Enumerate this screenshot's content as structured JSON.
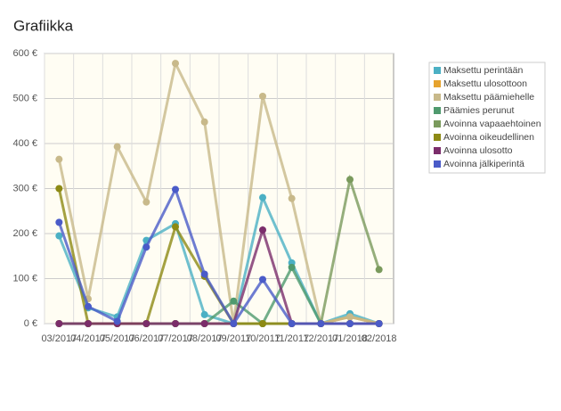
{
  "chart_data": {
    "type": "line",
    "title": "Grafiikka",
    "categories": [
      "03/2017",
      "04/2017",
      "05/2017",
      "06/2017",
      "07/2017",
      "08/2017",
      "09/2017",
      "10/2017",
      "11/2017",
      "12/2017",
      "01/2018",
      "02/2018"
    ],
    "ylim": [
      0,
      600
    ],
    "yticks": [
      {
        "value": 0,
        "label": "0 €"
      },
      {
        "value": 100,
        "label": "100 €"
      },
      {
        "value": 200,
        "label": "200 €"
      },
      {
        "value": 300,
        "label": "300 €"
      },
      {
        "value": 400,
        "label": "400 €"
      },
      {
        "value": 500,
        "label": "500 €"
      },
      {
        "value": 600,
        "label": "600 €"
      }
    ],
    "grid": true,
    "legend": "right",
    "series": [
      {
        "name": "Maksettu perintään",
        "color": "#4bb0c4",
        "values": [
          195,
          35,
          15,
          185,
          222,
          20,
          0,
          280,
          135,
          0,
          22,
          0
        ]
      },
      {
        "name": "Maksettu ulosottoon",
        "color": "#e6a32e",
        "values": [
          0,
          0,
          0,
          0,
          0,
          0,
          0,
          0,
          0,
          0,
          15,
          0
        ]
      },
      {
        "name": "Maksettu päämiehelle",
        "color": "#c8b98a",
        "values": [
          365,
          55,
          393,
          270,
          578,
          448,
          0,
          505,
          278,
          0,
          15,
          0
        ]
      },
      {
        "name": "Päämies perunut",
        "color": "#4f9a6e",
        "values": [
          0,
          0,
          0,
          0,
          0,
          0,
          50,
          0,
          125,
          0,
          0,
          0
        ]
      },
      {
        "name": "Avoinna vapaaehtoinen",
        "color": "#7a9a5c",
        "values": [
          0,
          0,
          0,
          0,
          0,
          0,
          0,
          0,
          0,
          0,
          320,
          120
        ]
      },
      {
        "name": "Avoinna oikeudellinen",
        "color": "#8d8a14",
        "values": [
          300,
          0,
          0,
          0,
          215,
          105,
          0,
          0,
          0,
          0,
          0,
          0
        ]
      },
      {
        "name": "Avoinna ulosotto",
        "color": "#7b2d6b",
        "values": [
          0,
          0,
          0,
          0,
          0,
          0,
          0,
          208,
          0,
          0,
          0,
          0
        ]
      },
      {
        "name": "Avoinna jälkiperintä",
        "color": "#4a5bc8",
        "values": [
          225,
          38,
          5,
          170,
          298,
          110,
          0,
          98,
          0,
          0,
          0,
          0
        ]
      }
    ]
  }
}
